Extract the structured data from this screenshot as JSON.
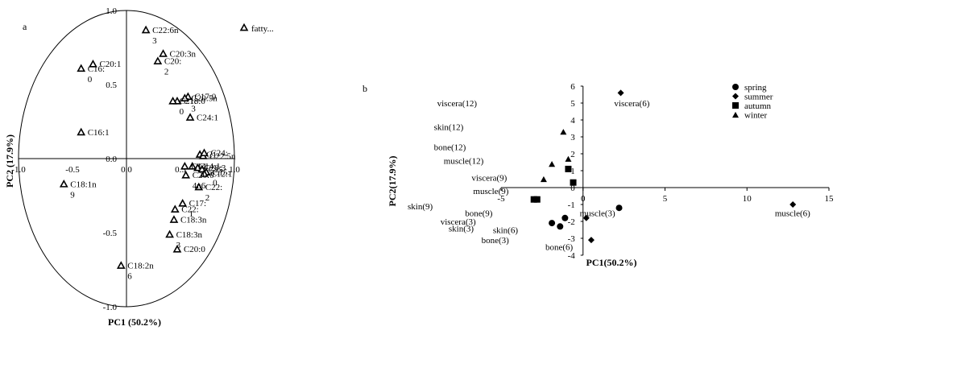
{
  "chart_data": [
    {
      "type": "scatter",
      "panel_label": "a",
      "xlabel": "PC1 (50.2%)",
      "ylabel": "PC2 (17.9%)",
      "xlim": [
        -1.0,
        1.0
      ],
      "ylim": [
        -1.0,
        1.0
      ],
      "x_tick_labels": [
        "-1.0",
        "-0.5",
        "0.0",
        "0.5",
        "1.0"
      ],
      "y_tick_labels": [
        "1.0",
        "0.5",
        "0.0",
        "-0.5",
        "-1.0"
      ],
      "unit_circle": true,
      "corner_label": "fatty...",
      "points": [
        {
          "x": 0.18,
          "y": 0.87,
          "label": "C22:6n\n3"
        },
        {
          "x": -0.31,
          "y": 0.64,
          "label": "C20:1"
        },
        {
          "x": -0.42,
          "y": 0.61,
          "label": "C16:\n0"
        },
        {
          "x": 0.34,
          "y": 0.71,
          "label": "C20:3n"
        },
        {
          "x": 0.29,
          "y": 0.66,
          "label": "C20:\n2"
        },
        {
          "x": 0.47,
          "y": 0.39,
          "label": "C18:0"
        },
        {
          "x": 0.57,
          "y": 0.42,
          "label": "C17:0"
        },
        {
          "x": 0.54,
          "y": 0.41,
          "label": "C20:5n\n3"
        },
        {
          "x": 0.43,
          "y": 0.39,
          "label": "C21:\n0"
        },
        {
          "x": 0.59,
          "y": 0.28,
          "label": "C24:1"
        },
        {
          "x": -0.42,
          "y": 0.18,
          "label": "C16:1"
        },
        {
          "x": 0.68,
          "y": 0.03,
          "label": "C1"
        },
        {
          "x": 0.71,
          "y": 0.02,
          "label": "C22:5n"
        },
        {
          "x": 0.72,
          "y": 0.04,
          "label": "C24:"
        },
        {
          "x": 0.66,
          "y": -0.06,
          "label": "C20:3"
        },
        {
          "x": 0.7,
          "y": -0.07,
          "label": "C15"
        },
        {
          "x": 0.61,
          "y": -0.05,
          "label": "C14:1"
        },
        {
          "x": 0.54,
          "y": -0.05,
          "label": "C14:"
        },
        {
          "x": 0.74,
          "y": -0.09,
          "label": "C15:\n0"
        },
        {
          "x": 0.72,
          "y": -0.1,
          "label": "C12:1"
        },
        {
          "x": 0.67,
          "y": -0.19,
          "label": "C22:\n2"
        },
        {
          "x": 0.55,
          "y": -0.11,
          "label": "C20:0\n4n6"
        },
        {
          "x": 0.52,
          "y": -0.3,
          "label": "C17:\n1"
        },
        {
          "x": 0.45,
          "y": -0.34,
          "label": "C22:"
        },
        {
          "x": 0.44,
          "y": -0.41,
          "label": "C18:3n"
        },
        {
          "x": 0.4,
          "y": -0.51,
          "label": "C18:3n\n3"
        },
        {
          "x": 0.47,
          "y": -0.61,
          "label": "C20:0"
        },
        {
          "x": -0.58,
          "y": -0.17,
          "label": "C18:1n\n9"
        },
        {
          "x": -0.05,
          "y": -0.72,
          "label": "C18:2n\n6"
        }
      ]
    },
    {
      "type": "scatter",
      "panel_label": "b",
      "xlabel": "PC1(50.2%)",
      "ylabel": "PC2(17.9%)",
      "xlim": [
        -5,
        15
      ],
      "ylim": [
        -4,
        6
      ],
      "x_tick_labels": [
        "-5",
        "0",
        "5",
        "10",
        "15"
      ],
      "y_tick_labels": [
        "6",
        "5",
        "4",
        "3",
        "2",
        "1",
        "0",
        "-1",
        "-2",
        "-3",
        "-4"
      ],
      "legend": {
        "position": "top-right",
        "entries": [
          {
            "name": "spring",
            "marker": "circle"
          },
          {
            "name": "summer",
            "marker": "diamond"
          },
          {
            "name": "autumn",
            "marker": "square"
          },
          {
            "name": "winter",
            "marker": "triangle"
          }
        ]
      },
      "series": [
        {
          "name": "spring",
          "marker": "circle",
          "points": [
            {
              "x": -1.9,
              "y": -2.1
            },
            {
              "x": -1.4,
              "y": -2.3
            },
            {
              "x": -1.1,
              "y": -1.8
            },
            {
              "x": 2.2,
              "y": -1.2
            }
          ]
        },
        {
          "name": "summer",
          "marker": "diamond",
          "points": [
            {
              "x": 2.3,
              "y": 5.6
            },
            {
              "x": 0.2,
              "y": -1.8
            },
            {
              "x": 0.5,
              "y": -3.1
            },
            {
              "x": 12.8,
              "y": -1.0
            }
          ]
        },
        {
          "name": "autumn",
          "marker": "square",
          "points": [
            {
              "x": -3.0,
              "y": -0.7
            },
            {
              "x": -2.8,
              "y": -0.7
            },
            {
              "x": -0.6,
              "y": 0.3
            },
            {
              "x": -0.9,
              "y": 1.1
            }
          ]
        },
        {
          "name": "winter",
          "marker": "triangle",
          "points": [
            {
              "x": -1.2,
              "y": 3.3
            },
            {
              "x": -1.9,
              "y": 1.4
            },
            {
              "x": -2.4,
              "y": 0.5
            },
            {
              "x": -0.9,
              "y": 1.7
            }
          ]
        }
      ],
      "text_labels": [
        {
          "text": "viscera(12)",
          "x": -8.9,
          "y": 5.0
        },
        {
          "text": "skin(12)",
          "x": -9.1,
          "y": 3.6
        },
        {
          "text": "bone(12)",
          "x": -9.1,
          "y": 2.4
        },
        {
          "text": "muscle(12)",
          "x": -8.5,
          "y": 1.6
        },
        {
          "text": "viscera(9)",
          "x": -6.8,
          "y": 0.6
        },
        {
          "text": "muscle(9)",
          "x": -6.7,
          "y": -0.2
        },
        {
          "text": "skin(9)",
          "x": -10.7,
          "y": -1.1
        },
        {
          "text": "bone(9)",
          "x": -7.2,
          "y": -1.5
        },
        {
          "text": "viscera(3)",
          "x": -8.7,
          "y": -2.0
        },
        {
          "text": "skin(3)",
          "x": -8.2,
          "y": -2.4
        },
        {
          "text": "skin(6)",
          "x": -5.5,
          "y": -2.5
        },
        {
          "text": "bone(3)",
          "x": -6.2,
          "y": -3.1
        },
        {
          "text": "bone(6)",
          "x": -2.3,
          "y": -3.5
        },
        {
          "text": "muscle(3)",
          "x": -0.2,
          "y": -1.5
        },
        {
          "text": "muscle(6)",
          "x": 11.7,
          "y": -1.5
        },
        {
          "text": "viscera(6)",
          "x": 1.9,
          "y": 5.0
        }
      ]
    }
  ]
}
